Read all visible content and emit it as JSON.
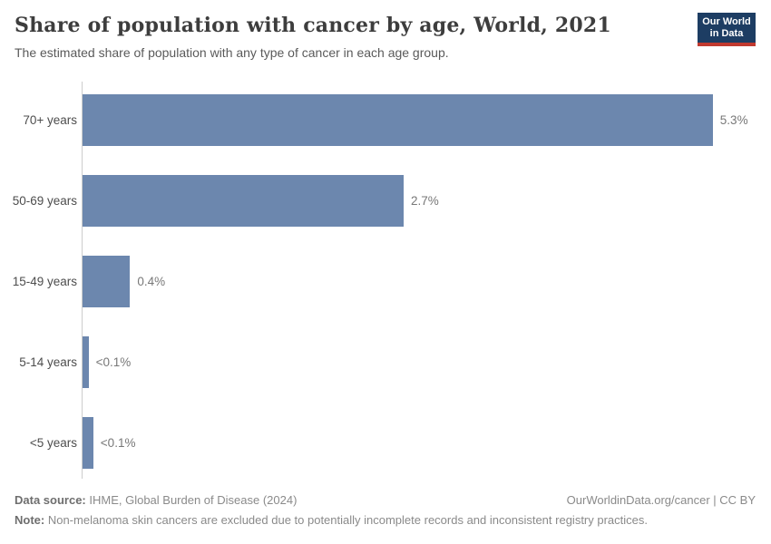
{
  "header": {
    "title": "Share of population with cancer by age, World, 2021",
    "subtitle": "The estimated share of population with any type of cancer in each age group.",
    "logo": {
      "line1": "Our World",
      "line2": "in Data",
      "bg_color": "#1d3d63",
      "accent_color": "#c1392f"
    }
  },
  "chart_data": {
    "type": "bar",
    "orientation": "horizontal",
    "title": "Share of population with cancer by age, World, 2021",
    "subtitle": "The estimated share of population with any type of cancer in each age group.",
    "categories": [
      "70+ years",
      "50-69 years",
      "15-49 years",
      "5-14 years",
      "<5 years"
    ],
    "values": [
      5.3,
      2.7,
      0.4,
      0.05,
      0.09
    ],
    "value_labels": [
      "5.3%",
      "2.7%",
      "0.4%",
      "<0.1%",
      "<0.1%"
    ],
    "unit": "%",
    "xlim": [
      0,
      5.675
    ],
    "grid": false,
    "legend": "none",
    "bar_color": "#6c87ae",
    "axis_color": "#cccccc"
  },
  "footer": {
    "datasource_label": "Data source:",
    "datasource_text": " IHME, Global Burden of Disease (2024)",
    "link": "OurWorldinData.org/cancer | CC BY",
    "note_label": "Note:",
    "note_text": " Non-melanoma skin cancers are excluded due to potentially incomplete records and inconsistent registry practices."
  }
}
